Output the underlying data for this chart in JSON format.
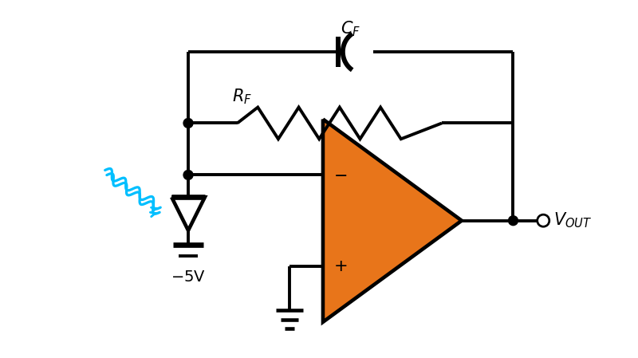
{
  "bg_color": "#ffffff",
  "line_color": "#000000",
  "line_width": 2.8,
  "opamp_color": "#E8751A",
  "light_color": "#00BFFF",
  "dot_color": "#000000",
  "figsize": [
    8.0,
    4.49
  ],
  "dpi": 100,
  "xlim": [
    0,
    8
  ],
  "ylim": [
    0,
    4.49
  ]
}
